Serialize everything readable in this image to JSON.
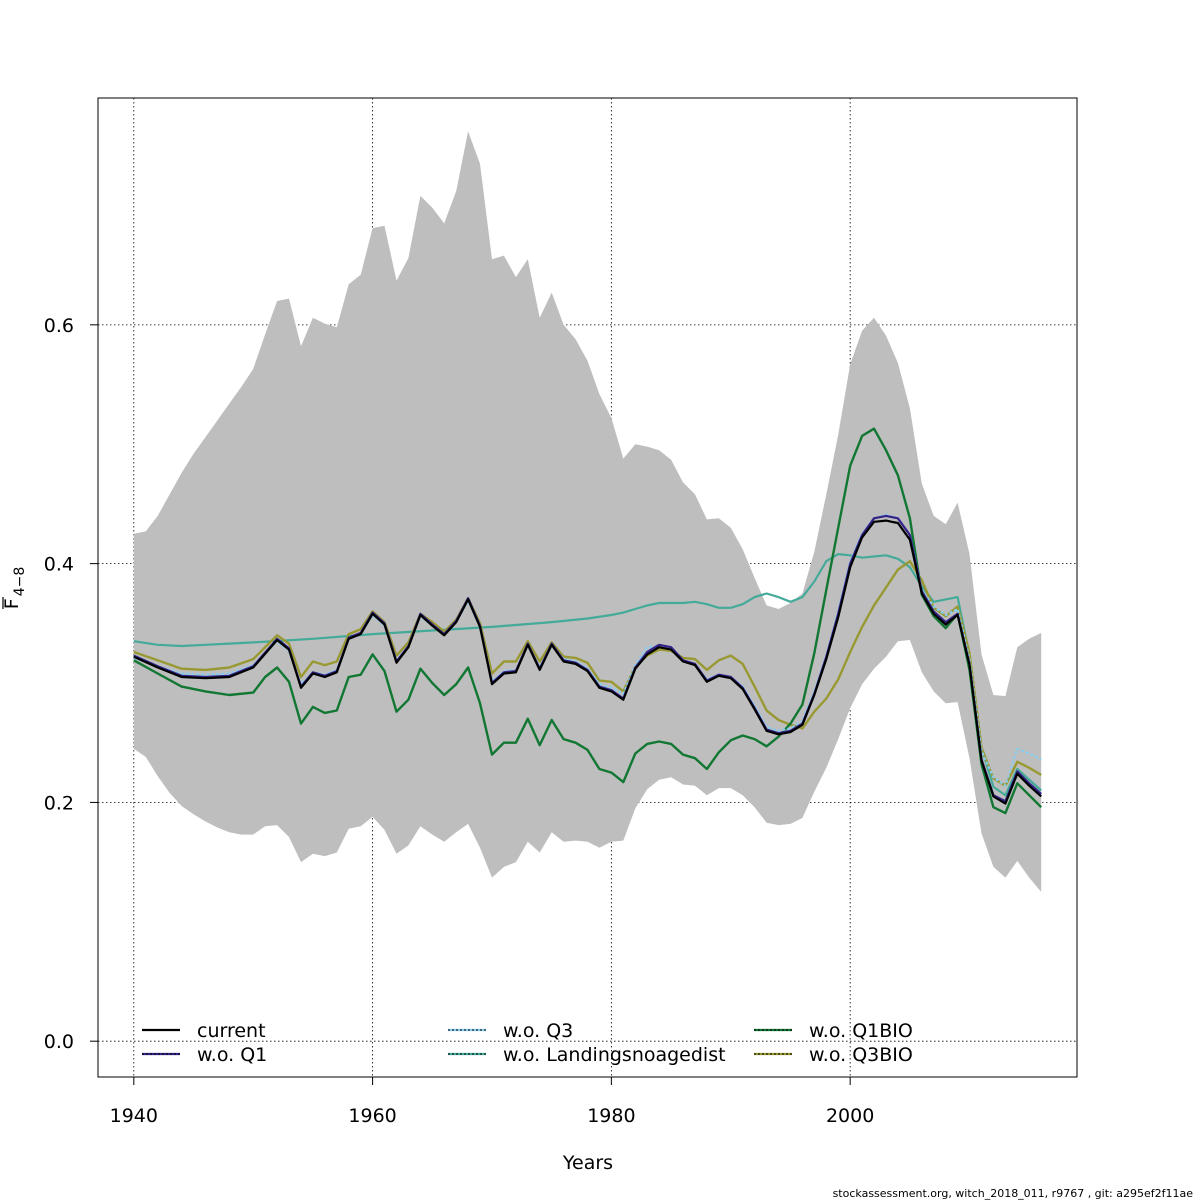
{
  "chart_data": {
    "type": "line",
    "xlabel": "Years",
    "ylabel_main": "F",
    "ylabel_sub": "4−8",
    "xlim": [
      1937,
      2019
    ],
    "ylim": [
      -0.03,
      0.79
    ],
    "xticks": [
      1940,
      1960,
      1980,
      2000
    ],
    "yticks": [
      0.0,
      0.2,
      0.4,
      0.6
    ],
    "ytick_labels": [
      "0.0",
      "0.2",
      "0.4",
      "0.6"
    ],
    "grid": true,
    "legend_position": "bottom",
    "confidence_band": {
      "color": "#bebebe",
      "x": [
        1940,
        1941,
        1942,
        1943,
        1944,
        1945,
        1946,
        1947,
        1948,
        1949,
        1950,
        1951,
        1952,
        1953,
        1954,
        1955,
        1956,
        1957,
        1958,
        1959,
        1960,
        1961,
        1962,
        1963,
        1964,
        1965,
        1966,
        1967,
        1968,
        1969,
        1970,
        1971,
        1972,
        1973,
        1974,
        1975,
        1976,
        1977,
        1978,
        1979,
        1980,
        1981,
        1982,
        1983,
        1984,
        1985,
        1986,
        1987,
        1988,
        1989,
        1990,
        1991,
        1992,
        1993,
        1994,
        1995,
        1996,
        1997,
        1998,
        1999,
        2000,
        2001,
        2002,
        2003,
        2004,
        2005,
        2006,
        2007,
        2008,
        2009,
        2010,
        2011,
        2012,
        2013,
        2014,
        2015,
        2016
      ],
      "upper": [
        0.425,
        0.427,
        0.44,
        0.458,
        0.476,
        0.492,
        0.506,
        0.52,
        0.534,
        0.548,
        0.563,
        0.592,
        0.62,
        0.622,
        0.582,
        0.606,
        0.601,
        0.598,
        0.634,
        0.642,
        0.681,
        0.683,
        0.637,
        0.656,
        0.708,
        0.698,
        0.685,
        0.712,
        0.762,
        0.735,
        0.655,
        0.658,
        0.64,
        0.655,
        0.606,
        0.627,
        0.6,
        0.588,
        0.57,
        0.542,
        0.522,
        0.488,
        0.5,
        0.498,
        0.495,
        0.487,
        0.468,
        0.458,
        0.437,
        0.438,
        0.43,
        0.412,
        0.388,
        0.365,
        0.362,
        0.367,
        0.375,
        0.41,
        0.458,
        0.508,
        0.567,
        0.595,
        0.606,
        0.591,
        0.568,
        0.53,
        0.467,
        0.44,
        0.433,
        0.451,
        0.408,
        0.324,
        0.29,
        0.289,
        0.33,
        0.337,
        0.342
      ],
      "lower": [
        0.245,
        0.238,
        0.222,
        0.208,
        0.197,
        0.19,
        0.184,
        0.179,
        0.175,
        0.173,
        0.173,
        0.18,
        0.181,
        0.171,
        0.15,
        0.157,
        0.155,
        0.158,
        0.178,
        0.18,
        0.188,
        0.177,
        0.157,
        0.164,
        0.18,
        0.173,
        0.167,
        0.175,
        0.182,
        0.162,
        0.137,
        0.146,
        0.15,
        0.167,
        0.158,
        0.175,
        0.167,
        0.168,
        0.167,
        0.162,
        0.167,
        0.168,
        0.195,
        0.211,
        0.219,
        0.221,
        0.215,
        0.214,
        0.206,
        0.212,
        0.212,
        0.206,
        0.196,
        0.183,
        0.181,
        0.182,
        0.187,
        0.209,
        0.229,
        0.253,
        0.279,
        0.299,
        0.312,
        0.322,
        0.335,
        0.336,
        0.309,
        0.293,
        0.283,
        0.284,
        0.237,
        0.174,
        0.146,
        0.137,
        0.151,
        0.137,
        0.125
      ]
    },
    "series": [
      {
        "name": "current",
        "color": "#000000",
        "dash": "",
        "width": 2.2,
        "x": [
          1940,
          1942,
          1944,
          1946,
          1948,
          1950,
          1952,
          1953,
          1954,
          1955,
          1956,
          1957,
          1958,
          1959,
          1960,
          1961,
          1962,
          1963,
          1964,
          1965,
          1966,
          1967,
          1968,
          1969,
          1970,
          1971,
          1972,
          1973,
          1974,
          1975,
          1976,
          1977,
          1978,
          1979,
          1980,
          1981,
          1982,
          1983,
          1984,
          1985,
          1986,
          1987,
          1988,
          1989,
          1990,
          1991,
          1992,
          1993,
          1994,
          1995,
          1996,
          1997,
          1998,
          1999,
          2000,
          2001,
          2002,
          2003,
          2004,
          2005,
          2006,
          2007,
          2008,
          2009,
          2010,
          2011,
          2012,
          2013,
          2014,
          2015,
          2016
        ],
        "y": [
          0.322,
          0.313,
          0.305,
          0.304,
          0.305,
          0.313,
          0.336,
          0.328,
          0.296,
          0.308,
          0.305,
          0.309,
          0.337,
          0.341,
          0.358,
          0.349,
          0.317,
          0.33,
          0.357,
          0.348,
          0.34,
          0.351,
          0.37,
          0.347,
          0.299,
          0.308,
          0.309,
          0.332,
          0.311,
          0.332,
          0.318,
          0.316,
          0.31,
          0.296,
          0.293,
          0.286,
          0.312,
          0.324,
          0.33,
          0.328,
          0.318,
          0.315,
          0.301,
          0.306,
          0.304,
          0.295,
          0.278,
          0.26,
          0.257,
          0.259,
          0.265,
          0.29,
          0.32,
          0.355,
          0.397,
          0.422,
          0.435,
          0.436,
          0.434,
          0.42,
          0.375,
          0.358,
          0.349,
          0.357,
          0.315,
          0.235,
          0.205,
          0.199,
          0.224,
          0.214,
          0.205
        ]
      },
      {
        "name": "w.o. Q1",
        "color": "#332288",
        "dash": "",
        "width": 2.2,
        "x": [
          1940,
          1942,
          1944,
          1946,
          1948,
          1950,
          1952,
          1953,
          1954,
          1955,
          1956,
          1957,
          1958,
          1959,
          1960,
          1961,
          1962,
          1963,
          1964,
          1965,
          1966,
          1967,
          1968,
          1969,
          1970,
          1971,
          1972,
          1973,
          1974,
          1975,
          1976,
          1977,
          1978,
          1979,
          1980,
          1981,
          1982,
          1983,
          1984,
          1985,
          1986,
          1987,
          1988,
          1989,
          1990,
          1991,
          1992,
          1993,
          1994,
          1995,
          1996,
          1997,
          1998,
          1999,
          2000,
          2001,
          2002,
          2003,
          2004,
          2005,
          2006,
          2007,
          2008,
          2009,
          2010,
          2011,
          2012,
          2013,
          2014,
          2015,
          2016
        ],
        "y": [
          0.323,
          0.314,
          0.306,
          0.305,
          0.306,
          0.314,
          0.337,
          0.329,
          0.297,
          0.309,
          0.306,
          0.31,
          0.338,
          0.342,
          0.359,
          0.35,
          0.318,
          0.331,
          0.358,
          0.349,
          0.341,
          0.352,
          0.371,
          0.348,
          0.3,
          0.309,
          0.31,
          0.333,
          0.312,
          0.333,
          0.319,
          0.317,
          0.311,
          0.297,
          0.294,
          0.287,
          0.313,
          0.326,
          0.332,
          0.33,
          0.319,
          0.316,
          0.302,
          0.307,
          0.305,
          0.296,
          0.279,
          0.261,
          0.258,
          0.26,
          0.266,
          0.291,
          0.322,
          0.358,
          0.4,
          0.424,
          0.438,
          0.44,
          0.438,
          0.424,
          0.377,
          0.36,
          0.351,
          0.358,
          0.316,
          0.236,
          0.206,
          0.201,
          0.226,
          0.216,
          0.207
        ]
      },
      {
        "name": "w.o. Q3",
        "color": "#88ccee",
        "dash": "3,2",
        "width": 2.2,
        "x": [
          1940,
          1942,
          1944,
          1946,
          1948,
          1950,
          1952,
          1953,
          1954,
          1955,
          1956,
          1957,
          1958,
          1959,
          1960,
          1961,
          1962,
          1963,
          1964,
          1965,
          1966,
          1967,
          1968,
          1969,
          1970,
          1971,
          1972,
          1973,
          1974,
          1975,
          1976,
          1977,
          1978,
          1979,
          1980,
          1981,
          1982,
          1983,
          1984,
          1985,
          1986,
          1987,
          1988,
          1989,
          1990,
          1991,
          1992,
          1993,
          1994,
          1995,
          1996,
          1997,
          1998,
          1999,
          2000,
          2001,
          2002,
          2003,
          2004,
          2005,
          2006,
          2007,
          2008,
          2009,
          2010,
          2011,
          2012,
          2013,
          2014,
          2015,
          2016
        ],
        "y": [
          0.321,
          0.314,
          0.308,
          0.307,
          0.308,
          0.315,
          0.335,
          0.327,
          0.299,
          0.309,
          0.307,
          0.311,
          0.337,
          0.341,
          0.357,
          0.348,
          0.319,
          0.331,
          0.356,
          0.348,
          0.341,
          0.351,
          0.369,
          0.347,
          0.301,
          0.31,
          0.311,
          0.332,
          0.313,
          0.332,
          0.32,
          0.318,
          0.312,
          0.299,
          0.296,
          0.291,
          0.315,
          0.33,
          0.331,
          0.329,
          0.318,
          0.315,
          0.303,
          0.307,
          0.305,
          0.297,
          0.281,
          0.263,
          0.26,
          0.262,
          0.268,
          0.293,
          0.323,
          0.36,
          0.402,
          0.425,
          0.438,
          0.441,
          0.438,
          0.424,
          0.378,
          0.364,
          0.357,
          0.362,
          0.32,
          0.243,
          0.221,
          0.214,
          0.245,
          0.241,
          0.236
        ]
      },
      {
        "name": "w.o. Landingsnoagedist",
        "color": "#44aa99",
        "dash": "",
        "width": 2.2,
        "x": [
          1940,
          1942,
          1944,
          1946,
          1948,
          1950,
          1955,
          1960,
          1965,
          1970,
          1975,
          1978,
          1980,
          1981,
          1982,
          1983,
          1984,
          1985,
          1986,
          1987,
          1988,
          1989,
          1990,
          1991,
          1992,
          1993,
          1994,
          1995,
          1996,
          1997,
          1998,
          1999,
          2000,
          2001,
          2002,
          2003,
          2004,
          2005,
          2006,
          2007,
          2008,
          2009,
          2010,
          2011,
          2012,
          2013,
          2014,
          2015,
          2016
        ],
        "y": [
          0.335,
          0.332,
          0.331,
          0.332,
          0.333,
          0.334,
          0.337,
          0.341,
          0.344,
          0.347,
          0.351,
          0.354,
          0.357,
          0.359,
          0.362,
          0.365,
          0.367,
          0.367,
          0.367,
          0.368,
          0.366,
          0.363,
          0.363,
          0.366,
          0.372,
          0.375,
          0.372,
          0.368,
          0.372,
          0.385,
          0.402,
          0.408,
          0.407,
          0.405,
          0.406,
          0.407,
          0.404,
          0.397,
          0.381,
          0.368,
          0.37,
          0.372,
          0.323,
          0.246,
          0.213,
          0.206,
          0.228,
          0.219,
          0.21
        ]
      },
      {
        "name": "w.o. Q1BIO",
        "color": "#117733",
        "dash": "",
        "width": 2.4,
        "x": [
          1940,
          1942,
          1944,
          1946,
          1948,
          1950,
          1951,
          1952,
          1953,
          1954,
          1955,
          1956,
          1957,
          1958,
          1959,
          1960,
          1961,
          1962,
          1963,
          1964,
          1965,
          1966,
          1967,
          1968,
          1969,
          1970,
          1971,
          1972,
          1973,
          1974,
          1975,
          1976,
          1977,
          1978,
          1979,
          1980,
          1981,
          1982,
          1983,
          1984,
          1985,
          1986,
          1987,
          1988,
          1989,
          1990,
          1991,
          1992,
          1993,
          1994,
          1995,
          1996,
          1997,
          1998,
          1999,
          2000,
          2001,
          2002,
          2003,
          2004,
          2005,
          2006,
          2007,
          2008,
          2009,
          2010,
          2011,
          2012,
          2013,
          2014,
          2015,
          2016
        ],
        "y": [
          0.319,
          0.308,
          0.297,
          0.293,
          0.29,
          0.292,
          0.305,
          0.313,
          0.301,
          0.266,
          0.28,
          0.275,
          0.277,
          0.305,
          0.307,
          0.324,
          0.31,
          0.276,
          0.286,
          0.312,
          0.3,
          0.29,
          0.299,
          0.313,
          0.283,
          0.24,
          0.25,
          0.25,
          0.27,
          0.248,
          0.269,
          0.253,
          0.25,
          0.244,
          0.228,
          0.225,
          0.217,
          0.241,
          0.249,
          0.251,
          0.249,
          0.24,
          0.237,
          0.228,
          0.242,
          0.252,
          0.256,
          0.253,
          0.247,
          0.255,
          0.266,
          0.282,
          0.325,
          0.378,
          0.43,
          0.482,
          0.507,
          0.513,
          0.495,
          0.474,
          0.438,
          0.374,
          0.356,
          0.346,
          0.358,
          0.311,
          0.232,
          0.196,
          0.191,
          0.216,
          0.206,
          0.196
        ]
      },
      {
        "name": "w.o. Q3BIO",
        "color": "#999933",
        "dash": "",
        "width": 2.4,
        "x": [
          1940,
          1942,
          1944,
          1946,
          1948,
          1950,
          1952,
          1953,
          1954,
          1955,
          1956,
          1957,
          1958,
          1959,
          1960,
          1961,
          1962,
          1963,
          1964,
          1965,
          1966,
          1967,
          1968,
          1969,
          1970,
          1971,
          1972,
          1973,
          1974,
          1975,
          1976,
          1977,
          1978,
          1979,
          1980,
          1981,
          1982,
          1983,
          1984,
          1985,
          1986,
          1987,
          1988,
          1989,
          1990,
          1991,
          1992,
          1993,
          1994,
          1995,
          1996,
          1997,
          1998,
          1999,
          2000,
          2001,
          2002,
          2003,
          2004,
          2005,
          2006,
          2007,
          2008,
          2009,
          2010,
          2011,
          2012,
          2013,
          2014,
          2015,
          2016
        ],
        "y": [
          0.326,
          0.319,
          0.312,
          0.311,
          0.313,
          0.32,
          0.34,
          0.333,
          0.305,
          0.318,
          0.315,
          0.318,
          0.341,
          0.345,
          0.36,
          0.351,
          0.323,
          0.334,
          0.358,
          0.351,
          0.343,
          0.353,
          0.371,
          0.35,
          0.308,
          0.318,
          0.318,
          0.335,
          0.318,
          0.334,
          0.322,
          0.321,
          0.317,
          0.302,
          0.301,
          0.293,
          0.314,
          0.323,
          0.328,
          0.327,
          0.321,
          0.32,
          0.311,
          0.319,
          0.323,
          0.316,
          0.297,
          0.277,
          0.269,
          0.265,
          0.262,
          0.276,
          0.287,
          0.303,
          0.326,
          0.347,
          0.365,
          0.38,
          0.395,
          0.402,
          0.386,
          0.363,
          0.356,
          0.364,
          0.325,
          0.246,
          0.22,
          0.214,
          0.234,
          0.229,
          0.223
        ]
      }
    ],
    "legend": [
      {
        "label": "current",
        "color": "#000000",
        "dash": "",
        "dotcolor": ""
      },
      {
        "label": "w.o. Q1",
        "color": "#332288",
        "dash": "",
        "dotcolor": "#000000"
      },
      {
        "label": "w.o. Q3",
        "color": "#88ccee",
        "dash": "",
        "dotcolor": "#000000"
      },
      {
        "label": "w.o. Landingsnoagedist",
        "color": "#44aa99",
        "dash": "",
        "dotcolor": "#000000"
      },
      {
        "label": "w.o. Q1BIO",
        "color": "#117733",
        "dash": "",
        "dotcolor": "#000000"
      },
      {
        "label": "w.o. Q3BIO",
        "color": "#999933",
        "dash": "",
        "dotcolor": "#000000"
      }
    ]
  },
  "footer": "stockassessment.org, witch_2018_011, r9767 , git: a295ef2f11ae"
}
